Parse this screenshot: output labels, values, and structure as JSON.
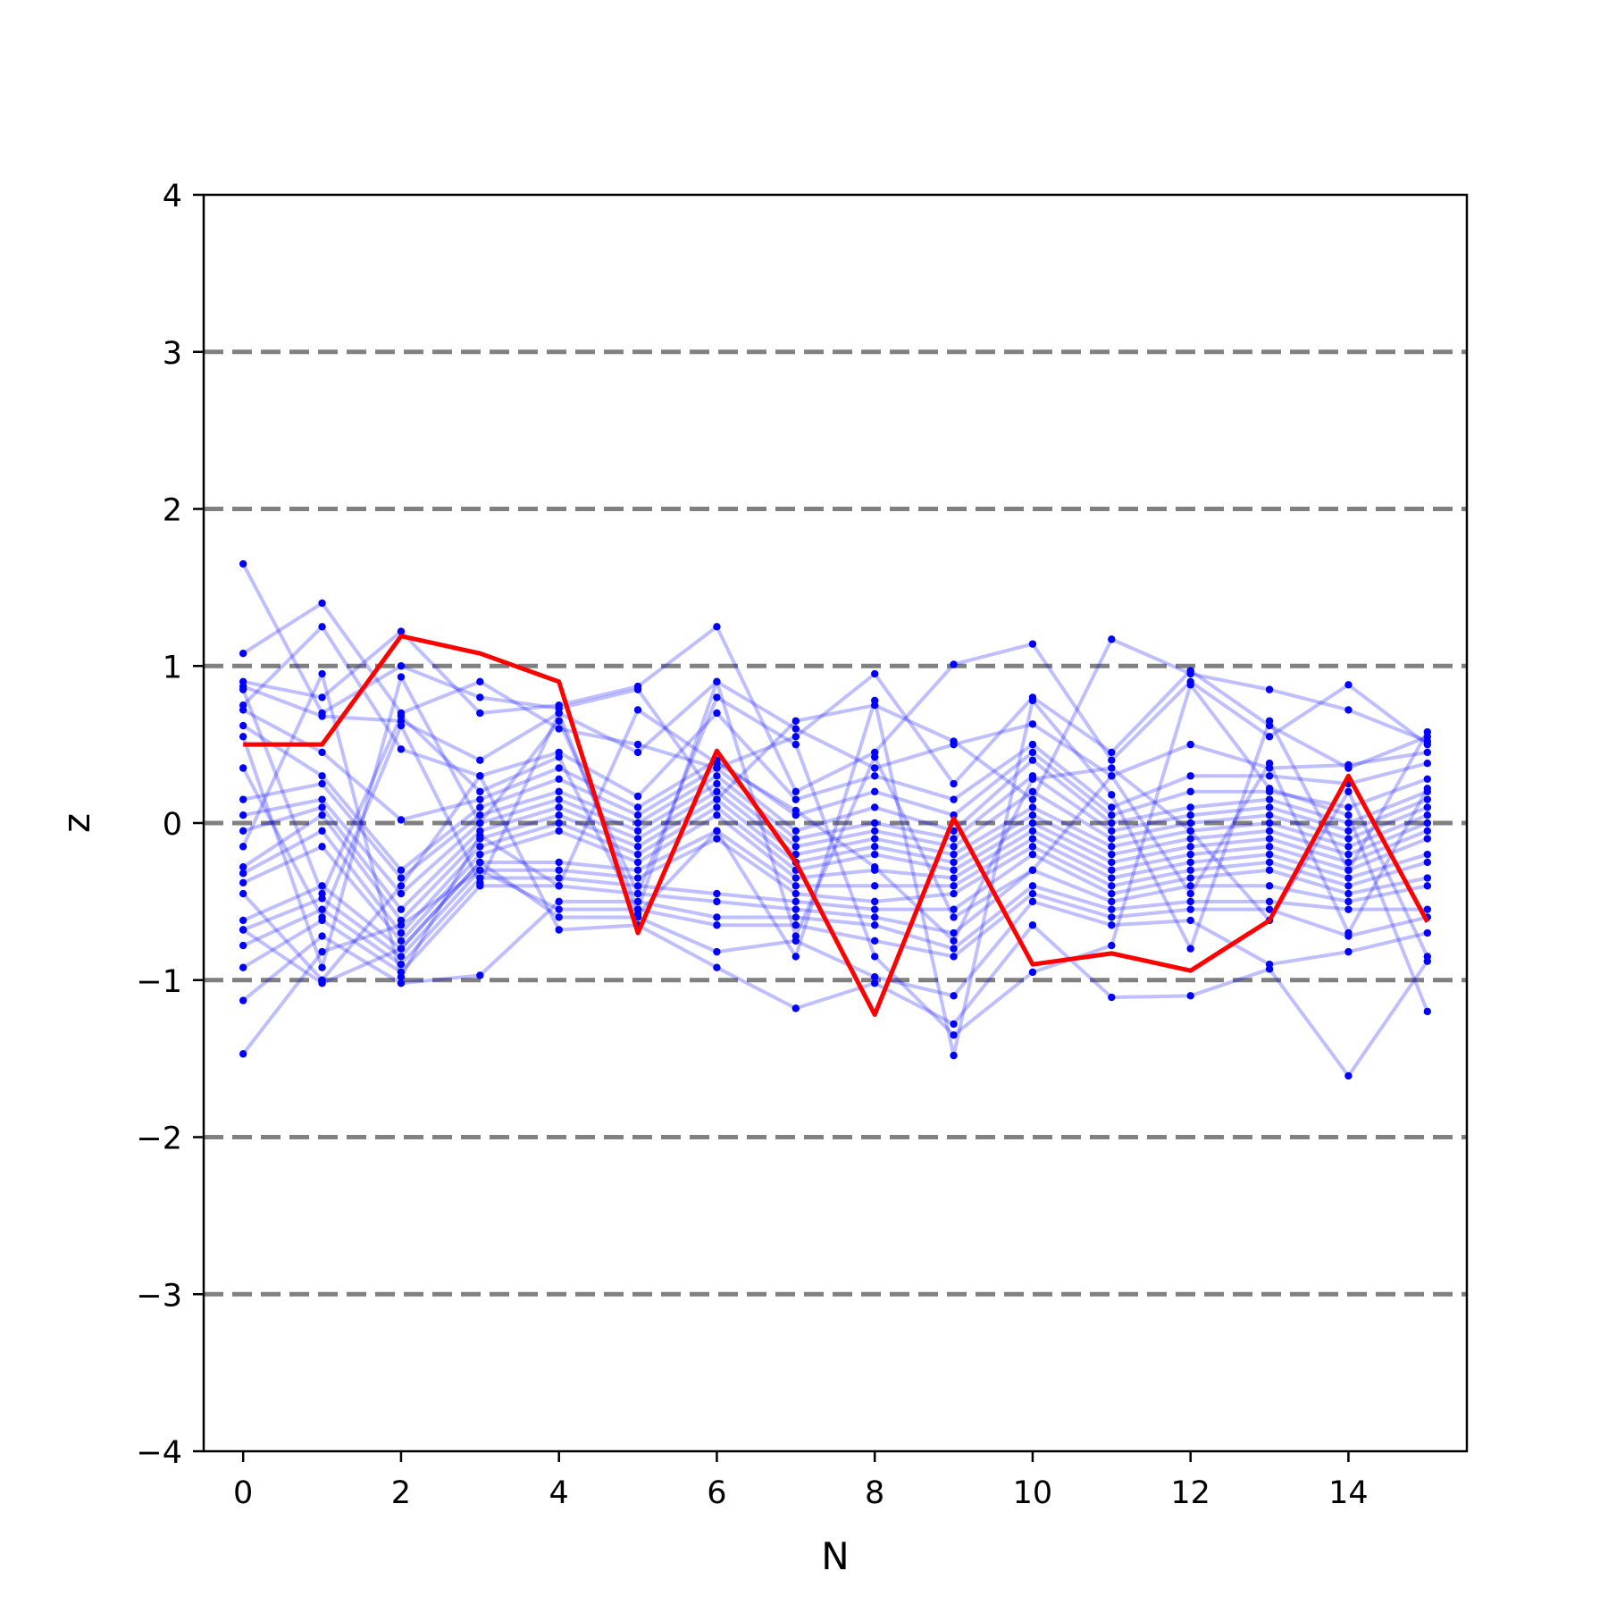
{
  "chart_data": {
    "type": "line",
    "title": "",
    "xlabel": "N",
    "ylabel": "z",
    "xlim": [
      -0.5,
      15.5
    ],
    "ylim": [
      -4,
      4
    ],
    "x_ticks": [
      0,
      2,
      4,
      6,
      8,
      10,
      12,
      14
    ],
    "x_tick_labels": [
      "0",
      "2",
      "4",
      "6",
      "8",
      "10",
      "12",
      "14"
    ],
    "y_ticks": [
      -4,
      -3,
      -2,
      -1,
      0,
      1,
      2,
      3,
      4
    ],
    "y_tick_labels": [
      "−4",
      "−3",
      "−2",
      "−1",
      "0",
      "1",
      "2",
      "3",
      "4"
    ],
    "reference_lines": [
      -3,
      -2,
      -1,
      0,
      1,
      2,
      3
    ],
    "reference_line_color": "#808080",
    "sample_color": "#0000ff",
    "highlight_color": "#ff0000",
    "x": [
      0,
      1,
      2,
      3,
      4,
      5,
      6,
      7,
      8,
      9,
      10,
      11,
      12,
      13,
      14,
      15
    ],
    "highlight_series": {
      "values": [
        0.5,
        0.5,
        1.19,
        1.08,
        0.9,
        -0.7,
        0.46,
        -0.25,
        -1.22,
        0.03,
        -0.9,
        -0.83,
        -0.94,
        -0.62,
        0.3,
        -0.63
      ]
    },
    "series": [
      {
        "values": [
          1.65,
          0.7,
          1.0,
          0.8,
          0.73,
          0.85,
          0.15,
          0.65,
          0.75,
          0.52,
          0.15,
          1.17,
          0.95,
          0.85,
          0.72,
          0.52
        ]
      },
      {
        "values": [
          1.08,
          1.4,
          0.7,
          0.9,
          0.6,
          0.5,
          0.35,
          0.55,
          0.95,
          0.25,
          0.8,
          0.45,
          0.97,
          0.62,
          0.35,
          0.55
        ]
      },
      {
        "values": [
          0.9,
          0.8,
          1.22,
          0.7,
          0.75,
          0.87,
          1.25,
          0.2,
          0.45,
          1.01,
          1.14,
          0.4,
          0.9,
          0.55,
          0.88,
          0.5
        ]
      },
      {
        "values": [
          0.87,
          0.68,
          0.65,
          0.4,
          0.7,
          0.45,
          0.9,
          0.6,
          0.35,
          0.5,
          0.63,
          0.3,
          0.5,
          0.35,
          0.37,
          0.45
        ]
      },
      {
        "values": [
          0.75,
          1.25,
          0.47,
          0.3,
          0.45,
          0.17,
          0.7,
          0.15,
          0.3,
          0.15,
          0.5,
          0.1,
          0.3,
          0.3,
          0.25,
          0.38
        ]
      },
      {
        "values": [
          0.72,
          0.45,
          0.02,
          0.15,
          0.35,
          0.1,
          0.4,
          0.05,
          0.2,
          0.05,
          0.45,
          0.05,
          0.2,
          0.2,
          0.1,
          0.28
        ]
      },
      {
        "values": [
          0.62,
          0.3,
          -0.3,
          0.1,
          0.28,
          0.05,
          0.35,
          -0.05,
          0.1,
          -0.05,
          0.4,
          0.0,
          0.1,
          0.15,
          0.0,
          0.2
        ]
      },
      {
        "values": [
          0.15,
          0.25,
          -0.35,
          0.05,
          0.2,
          0.0,
          0.3,
          -0.1,
          0.0,
          -0.1,
          0.3,
          -0.05,
          0.05,
          0.1,
          -0.05,
          0.15
        ]
      },
      {
        "values": [
          0.05,
          0.15,
          -0.45,
          0.0,
          0.15,
          -0.05,
          0.25,
          -0.15,
          -0.05,
          -0.15,
          0.2,
          -0.1,
          0.0,
          0.05,
          -0.1,
          0.1
        ]
      },
      {
        "values": [
          -0.05,
          0.1,
          -0.55,
          -0.05,
          0.1,
          -0.1,
          0.2,
          -0.2,
          -0.1,
          -0.2,
          0.1,
          -0.15,
          -0.05,
          0.0,
          -0.15,
          0.05
        ]
      },
      {
        "values": [
          -0.28,
          0.05,
          -0.62,
          -0.1,
          0.05,
          -0.15,
          0.15,
          -0.25,
          -0.15,
          -0.25,
          0.05,
          -0.2,
          -0.1,
          -0.05,
          -0.2,
          0.0
        ]
      },
      {
        "values": [
          -0.32,
          -0.05,
          -0.7,
          -0.15,
          0.0,
          -0.2,
          0.1,
          -0.3,
          -0.2,
          -0.3,
          0.0,
          -0.25,
          -0.15,
          -0.1,
          -0.25,
          -0.05
        ]
      },
      {
        "values": [
          -0.38,
          -0.15,
          -0.75,
          -0.2,
          -0.05,
          -0.25,
          0.05,
          -0.35,
          -0.3,
          -0.35,
          -0.05,
          -0.3,
          -0.2,
          -0.15,
          -0.3,
          -0.1
        ]
      },
      {
        "values": [
          -0.62,
          -0.4,
          -0.8,
          -0.25,
          -0.25,
          -0.3,
          -0.05,
          -0.4,
          -0.4,
          -0.4,
          -0.1,
          -0.35,
          -0.25,
          -0.2,
          -0.35,
          -0.2
        ]
      },
      {
        "values": [
          -0.68,
          -0.48,
          -0.85,
          -0.3,
          -0.3,
          -0.35,
          -0.1,
          -0.45,
          -0.5,
          -0.45,
          -0.15,
          -0.4,
          -0.3,
          -0.25,
          -0.4,
          -0.25
        ]
      },
      {
        "values": [
          -0.78,
          -0.55,
          -0.9,
          -0.35,
          -0.35,
          -0.4,
          -0.45,
          -0.5,
          -0.55,
          -0.55,
          -0.2,
          -0.45,
          -0.35,
          -0.3,
          -0.45,
          -0.35
        ]
      },
      {
        "values": [
          -0.92,
          -0.62,
          -0.95,
          -0.4,
          -0.4,
          -0.45,
          -0.5,
          -0.55,
          -0.6,
          -0.7,
          -0.3,
          -0.5,
          -0.4,
          -0.4,
          -0.5,
          -0.4
        ]
      },
      {
        "values": [
          -1.13,
          -0.72,
          -1.02,
          -0.97,
          -0.5,
          -0.5,
          -0.6,
          -0.6,
          -0.65,
          -0.8,
          -0.4,
          -0.55,
          -0.5,
          -0.5,
          -0.55,
          -0.55
        ]
      },
      {
        "values": [
          -1.47,
          -0.82,
          -0.65,
          -0.3,
          -0.55,
          -0.55,
          -0.65,
          -0.65,
          -0.75,
          -0.85,
          -0.45,
          -0.6,
          -0.55,
          -0.55,
          -0.72,
          -0.6
        ]
      },
      {
        "values": [
          -0.68,
          -1.02,
          -0.8,
          -0.25,
          -0.6,
          -0.6,
          -0.82,
          -0.75,
          -0.98,
          -1.1,
          -0.5,
          -0.65,
          -0.62,
          -0.9,
          -0.82,
          -0.7
        ]
      },
      {
        "values": [
          -0.45,
          -1.0,
          -0.4,
          0.3,
          -0.68,
          -0.65,
          -0.92,
          -1.18,
          -1.02,
          -1.28,
          -0.65,
          -1.11,
          -1.1,
          -0.93,
          -1.61,
          -0.88
        ]
      },
      {
        "values": [
          0.55,
          -0.92,
          0.93,
          0.0,
          0.65,
          -0.45,
          0.8,
          0.5,
          -0.85,
          -1.35,
          -0.95,
          -0.78,
          0.88,
          0.22,
          0.05,
          -1.2
        ]
      },
      {
        "values": [
          0.85,
          -0.45,
          0.68,
          0.2,
          0.42,
          -0.58,
          -0.05,
          -0.85,
          0.78,
          -1.48,
          0.78,
          0.18,
          -0.8,
          0.65,
          -0.3,
          0.58
        ]
      },
      {
        "values": [
          -0.15,
          0.95,
          -0.98,
          -0.08,
          -0.4,
          0.72,
          0.38,
          0.08,
          -0.28,
          -0.75,
          0.28,
          0.35,
          -0.05,
          -0.62,
          0.2,
          -0.85
        ]
      },
      {
        "values": [
          0.35,
          -0.6,
          0.62,
          -0.38,
          0.7,
          -0.55,
          0.9,
          -0.72,
          0.42,
          -0.6,
          -0.3,
          0.3,
          -0.45,
          0.38,
          -0.7,
          0.22
        ]
      }
    ]
  }
}
